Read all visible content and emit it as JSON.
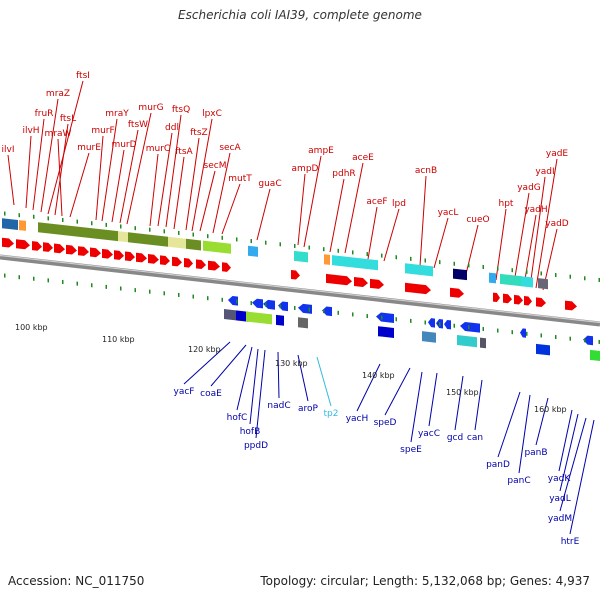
{
  "title": "Escherichia coli IAI39, complete genome",
  "footer": {
    "accession": "Accession: NC_011750",
    "summary": "Topology: circular; Length: 5,132,068 bp; Genes: 4,937"
  },
  "colors": {
    "top_label": "#cc0000",
    "bottom_label": "#0000aa",
    "highlight_label": "#33bbdd",
    "red_arrow": "#ee0000",
    "blue_arrow": "#1133ee",
    "tick": "#228822",
    "backbone": "#888888"
  },
  "kbp_ticks": [
    {
      "label": "100 kbp"
    },
    {
      "label": "110 kbp"
    },
    {
      "label": "120 kbp"
    },
    {
      "label": "130 kbp"
    },
    {
      "label": "140 kbp"
    },
    {
      "label": "150 kbp"
    },
    {
      "label": "160 kbp"
    }
  ],
  "top_genes": [
    {
      "name": "ilvI"
    },
    {
      "name": "ilvH"
    },
    {
      "name": "fruR"
    },
    {
      "name": "mraZ"
    },
    {
      "name": "ftsI"
    },
    {
      "name": "ftsL"
    },
    {
      "name": "mraW"
    },
    {
      "name": "murE"
    },
    {
      "name": "murF"
    },
    {
      "name": "mraY"
    },
    {
      "name": "murD"
    },
    {
      "name": "ftsW"
    },
    {
      "name": "murG"
    },
    {
      "name": "murC"
    },
    {
      "name": "ddl"
    },
    {
      "name": "ftsQ"
    },
    {
      "name": "ftsA"
    },
    {
      "name": "ftsZ"
    },
    {
      "name": "lpxC"
    },
    {
      "name": "secM"
    },
    {
      "name": "secA"
    },
    {
      "name": "mutT"
    },
    {
      "name": "guaC"
    },
    {
      "name": "ampD"
    },
    {
      "name": "ampE"
    },
    {
      "name": "pdhR"
    },
    {
      "name": "aceE"
    },
    {
      "name": "aceF"
    },
    {
      "name": "lpd"
    },
    {
      "name": "acnB"
    },
    {
      "name": "yacL"
    },
    {
      "name": "cueO"
    },
    {
      "name": "hpt"
    },
    {
      "name": "yadG"
    },
    {
      "name": "yadH"
    },
    {
      "name": "yadI"
    },
    {
      "name": "yadE"
    },
    {
      "name": "yadD"
    }
  ],
  "bottom_genes": [
    {
      "name": "yacF"
    },
    {
      "name": "coaE"
    },
    {
      "name": "hofC"
    },
    {
      "name": "hofB"
    },
    {
      "name": "ppdD"
    },
    {
      "name": "nadC"
    },
    {
      "name": "aroP"
    },
    {
      "name": "tp2"
    },
    {
      "name": "yacH"
    },
    {
      "name": "speD"
    },
    {
      "name": "speE"
    },
    {
      "name": "yacC"
    },
    {
      "name": "gcd"
    },
    {
      "name": "can"
    },
    {
      "name": "panD"
    },
    {
      "name": "panC"
    },
    {
      "name": "panB"
    },
    {
      "name": "yadK"
    },
    {
      "name": "yadL"
    },
    {
      "name": "yadM"
    },
    {
      "name": "htrE"
    }
  ]
}
